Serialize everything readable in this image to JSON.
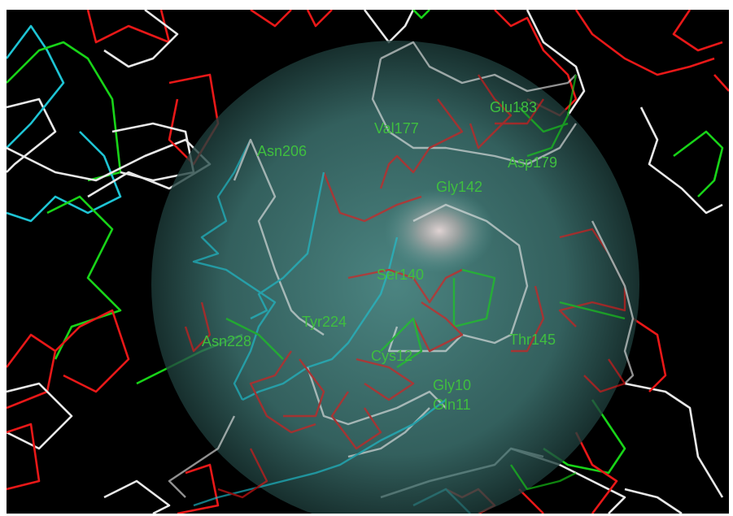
{
  "colors": {
    "background": "#000000",
    "label": "#3fbf3f",
    "sphere": "#4d8c89",
    "sphere_edge": "#2a5451",
    "highlight": "#f0dede",
    "chains": {
      "white": "#e8e8e8",
      "red": "#e81818",
      "green": "#18d418",
      "cyan": "#1ec4d4"
    }
  },
  "labels": [
    {
      "id": "Val177",
      "text": "Val177"
    },
    {
      "id": "Glu183",
      "text": "Glu183"
    },
    {
      "id": "Asn206",
      "text": "Asn206"
    },
    {
      "id": "Asp179",
      "text": "Asp179"
    },
    {
      "id": "Gly142",
      "text": "Gly142"
    },
    {
      "id": "Ser140",
      "text": "Ser140"
    },
    {
      "id": "Tyr224",
      "text": "Tyr224"
    },
    {
      "id": "Asn228",
      "text": "Asn228"
    },
    {
      "id": "Thr145",
      "text": "Thr145"
    },
    {
      "id": "Cys12",
      "text": "Cys12"
    },
    {
      "id": "Gly10",
      "text": "Gly10"
    },
    {
      "id": "Gln11",
      "text": "Gln11"
    }
  ]
}
